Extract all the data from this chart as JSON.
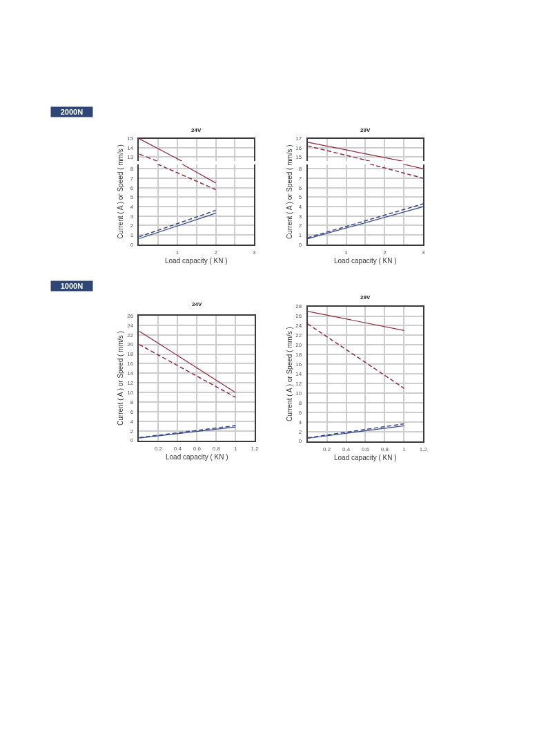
{
  "chart_data": [
    {
      "type": "line",
      "title": "24V",
      "annotations": [
        "2000N"
      ],
      "xlim": [
        0,
        3
      ],
      "xticks": [
        {
          "value": 0.5,
          "label": null
        },
        1,
        {
          "value": 1.5,
          "label": null
        },
        2,
        {
          "value": 2.5,
          "label": null
        },
        3
      ],
      "ylim": [
        12.5,
        15
      ],
      "yticks": [
        13,
        14,
        15
      ],
      "tick_labels": "y",
      "grid": true,
      "series": [
        {
          "color": "#8b2a3a",
          "line_style": "solid",
          "x": [
            0,
            1.12
          ],
          "values": [
            15,
            12.5
          ]
        },
        {
          "color": "#8b2a3a",
          "line_style": "dashed",
          "x": [
            0,
            0.48
          ],
          "values": [
            13.3,
            12.5
          ]
        }
      ]
    },
    {
      "type": "line",
      "xlabel": "Load capacity ( KN )",
      "ylabel": "Current ( A ) or Speed ( mm/s )",
      "xlim": [
        0,
        3
      ],
      "xticks": [
        {
          "value": 0.5,
          "label": null
        },
        1,
        {
          "value": 1.5,
          "label": null
        },
        2,
        {
          "value": 2.5,
          "label": null
        },
        3
      ],
      "ylim": [
        0,
        8.5
      ],
      "yticks": [
        0,
        1,
        2,
        3,
        4,
        5,
        6,
        7,
        8
      ],
      "grid": true,
      "series": [
        {
          "color": "#8b2a3a",
          "line_style": "solid",
          "x": [
            1.12,
            2
          ],
          "values": [
            8.5,
            6.5
          ]
        },
        {
          "color": "#8b2a3a",
          "line_style": "dashed",
          "x": [
            0.48,
            2
          ],
          "values": [
            8.5,
            5.8
          ]
        },
        {
          "color": "#33468a",
          "line_style": "solid",
          "x": [
            0,
            2
          ],
          "values": [
            0.6,
            3.3
          ]
        },
        {
          "color": "#33468a",
          "line_style": "dashed",
          "x": [
            0,
            2
          ],
          "values": [
            0.8,
            3.6
          ]
        }
      ]
    },
    {
      "type": "line",
      "title": "29V",
      "xlim": [
        0,
        3
      ],
      "xticks": [
        {
          "value": 0.5,
          "label": null
        },
        1,
        {
          "value": 1.5,
          "label": null
        },
        2,
        {
          "value": 2.5,
          "label": null
        },
        3
      ],
      "ylim": [
        14.5,
        17
      ],
      "yticks": [
        15,
        16,
        17
      ],
      "tick_labels": "y",
      "grid": true,
      "series": [
        {
          "color": "#8b2a3a",
          "line_style": "solid",
          "x": [
            0,
            2.47
          ],
          "values": [
            16.6,
            14.5
          ]
        },
        {
          "color": "#8b2a3a",
          "line_style": "dashed",
          "x": [
            0,
            1.62
          ],
          "values": [
            16.2,
            14.5
          ]
        }
      ]
    },
    {
      "type": "line",
      "xlabel": "Load capacity ( KN )",
      "ylabel": "Current ( A ) or Speed ( mm/s )",
      "xlim": [
        0,
        3
      ],
      "xticks": [
        {
          "value": 0.5,
          "label": null
        },
        1,
        {
          "value": 1.5,
          "label": null
        },
        2,
        {
          "value": 2.5,
          "label": null
        },
        3
      ],
      "ylim": [
        0,
        8.5
      ],
      "yticks": [
        0,
        1,
        2,
        3,
        4,
        5,
        6,
        7,
        8
      ],
      "grid": true,
      "series": [
        {
          "color": "#8b2a3a",
          "line_style": "solid",
          "x": [
            2.47,
            3
          ],
          "values": [
            8.5,
            8.0
          ]
        },
        {
          "color": "#8b2a3a",
          "line_style": "dashed",
          "x": [
            1.62,
            3
          ],
          "values": [
            8.5,
            7.0
          ]
        },
        {
          "color": "#33468a",
          "line_style": "solid",
          "x": [
            0,
            3
          ],
          "values": [
            0.6,
            4.0
          ]
        },
        {
          "color": "#33468a",
          "line_style": "dashed",
          "x": [
            0,
            3
          ],
          "values": [
            0.7,
            4.3
          ]
        }
      ]
    },
    {
      "type": "line",
      "title": "24V",
      "annotations": [
        "1000N"
      ],
      "xlabel": "Load capacity ( KN )",
      "ylabel": "Current ( A ) or Speed ( mm/s )",
      "xlim": [
        0,
        1.2
      ],
      "xticks": [
        0.2,
        0.4,
        0.6,
        0.8,
        1,
        1.2
      ],
      "ylim": [
        0,
        26
      ],
      "yticks": [
        0,
        2,
        4,
        6,
        8,
        10,
        12,
        14,
        16,
        18,
        20,
        22,
        24,
        26
      ],
      "grid": true,
      "series": [
        {
          "color": "#8b2a3a",
          "line_style": "solid",
          "x": [
            0,
            1
          ],
          "values": [
            22.8,
            10
          ]
        },
        {
          "color": "#8b2a3a",
          "line_style": "dashed",
          "x": [
            0,
            1
          ],
          "values": [
            20,
            9
          ]
        },
        {
          "color": "#33468a",
          "line_style": "solid",
          "x": [
            0,
            1
          ],
          "values": [
            0.5,
            2.8
          ]
        },
        {
          "color": "#33468a",
          "line_style": "dashed",
          "x": [
            0,
            1
          ],
          "values": [
            0.6,
            3.1
          ]
        }
      ]
    },
    {
      "type": "line",
      "title": "29V",
      "xlabel": "Load capacity ( KN )",
      "ylabel": "Current ( A ) or Speed ( mm/s )",
      "xlim": [
        0,
        1.2
      ],
      "xticks": [
        0.2,
        0.4,
        0.6,
        0.8,
        1,
        1.2
      ],
      "ylim": [
        0,
        28
      ],
      "yticks": [
        0,
        2,
        4,
        6,
        8,
        10,
        12,
        14,
        16,
        18,
        20,
        22,
        24,
        26,
        28
      ],
      "grid": true,
      "series": [
        {
          "color": "#8b2a3a",
          "line_style": "solid",
          "x": [
            0,
            1
          ],
          "values": [
            27,
            23
          ]
        },
        {
          "color": "#8b2a3a",
          "line_style": "dashed",
          "x": [
            0,
            1
          ],
          "values": [
            24.4,
            11
          ]
        },
        {
          "color": "#33468a",
          "line_style": "solid",
          "x": [
            0,
            1
          ],
          "values": [
            0.6,
            3.2
          ]
        },
        {
          "color": "#33468a",
          "line_style": "dashed",
          "x": [
            0,
            1
          ],
          "values": [
            0.7,
            3.6
          ]
        }
      ]
    }
  ]
}
